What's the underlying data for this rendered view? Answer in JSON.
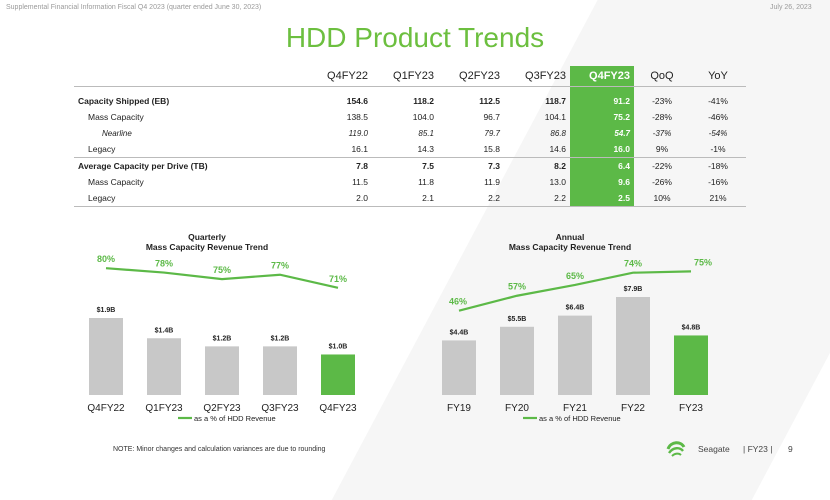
{
  "header": {
    "left": "Supplemental Financial Information Fiscal Q4 2023 (quarter ended June 30, 2023)",
    "right": "July 26, 2023"
  },
  "title": "HDD Product Trends",
  "table": {
    "columns": [
      "Q4FY22",
      "Q1FY23",
      "Q2FY23",
      "Q3FY23",
      "Q4FY23",
      "QoQ",
      "YoY"
    ],
    "rows": [
      {
        "label": "Capacity Shipped (EB)",
        "style": "bold",
        "values": [
          "154.6",
          "118.2",
          "112.5",
          "118.7",
          "91.2",
          "-23%",
          "-41%"
        ]
      },
      {
        "label": "Mass Capacity",
        "style": "indent",
        "values": [
          "138.5",
          "104.0",
          "96.7",
          "104.1",
          "75.2",
          "-28%",
          "-46%"
        ]
      },
      {
        "label": "Nearline",
        "style": "italic",
        "values": [
          "119.0",
          "85.1",
          "79.7",
          "86.8",
          "54.7",
          "-37%",
          "-54%"
        ]
      },
      {
        "label": "Legacy",
        "style": "indent",
        "values": [
          "16.1",
          "14.3",
          "15.8",
          "14.6",
          "16.0",
          "9%",
          "-1%"
        ]
      },
      {
        "label": "Average Capacity per Drive (TB)",
        "style": "bold",
        "values": [
          "7.8",
          "7.5",
          "7.3",
          "8.2",
          "6.4",
          "-22%",
          "-18%"
        ]
      },
      {
        "label": "Mass Capacity",
        "style": "indent",
        "values": [
          "11.5",
          "11.8",
          "11.9",
          "13.0",
          "9.6",
          "-26%",
          "-16%"
        ]
      },
      {
        "label": "Legacy",
        "style": "indent",
        "values": [
          "2.0",
          "2.1",
          "2.2",
          "2.2",
          "2.5",
          "10%",
          "21%"
        ]
      }
    ]
  },
  "chart_data": [
    {
      "type": "bar",
      "title": "Quarterly\nMass Capacity Revenue Trend",
      "categories": [
        "Q4FY22",
        "Q1FY23",
        "Q2FY23",
        "Q3FY23",
        "Q4FY23"
      ],
      "series": [
        {
          "values": [
            1.9,
            1.4,
            1.2,
            1.2,
            1.0
          ],
          "labels": [
            "$1.9B",
            "$1.4B",
            "$1.2B",
            "$1.2B",
            "$1.0B"
          ]
        },
        {
          "name": "as a % of HDD Revenue",
          "type": "line",
          "values": [
            80,
            78,
            75,
            77,
            71
          ],
          "labels": [
            "80%",
            "78%",
            "75%",
            "77%",
            "71%"
          ]
        }
      ],
      "highlight_index": 4,
      "colors": {
        "bar": "#c8c8c8",
        "highlight": "#5cb947",
        "line": "#5cb947"
      }
    },
    {
      "type": "bar",
      "title": "Annual\nMass Capacity Revenue Trend",
      "categories": [
        "FY19",
        "FY20",
        "FY21",
        "FY22",
        "FY23"
      ],
      "series": [
        {
          "values": [
            4.4,
            5.5,
            6.4,
            7.9,
            4.8
          ],
          "labels": [
            "$4.4B",
            "$5.5B",
            "$6.4B",
            "$7.9B",
            "$4.8B"
          ]
        },
        {
          "name": "as a % of HDD Revenue",
          "type": "line",
          "values": [
            46,
            57,
            65,
            74,
            75
          ],
          "labels": [
            "46%",
            "57%",
            "65%",
            "74%",
            "75%"
          ]
        }
      ],
      "highlight_index": 4,
      "colors": {
        "bar": "#c8c8c8",
        "highlight": "#5cb947",
        "line": "#5cb947"
      }
    }
  ],
  "legend_label": "as a % of HDD Revenue",
  "note": "NOTE: Minor changes and calculation variances are due to rounding",
  "footer": {
    "brand": "Seagate",
    "sep": "| FY23 |",
    "page": "9"
  },
  "colors": {
    "accent": "#6cbf3f",
    "highlight": "#5cb947"
  }
}
